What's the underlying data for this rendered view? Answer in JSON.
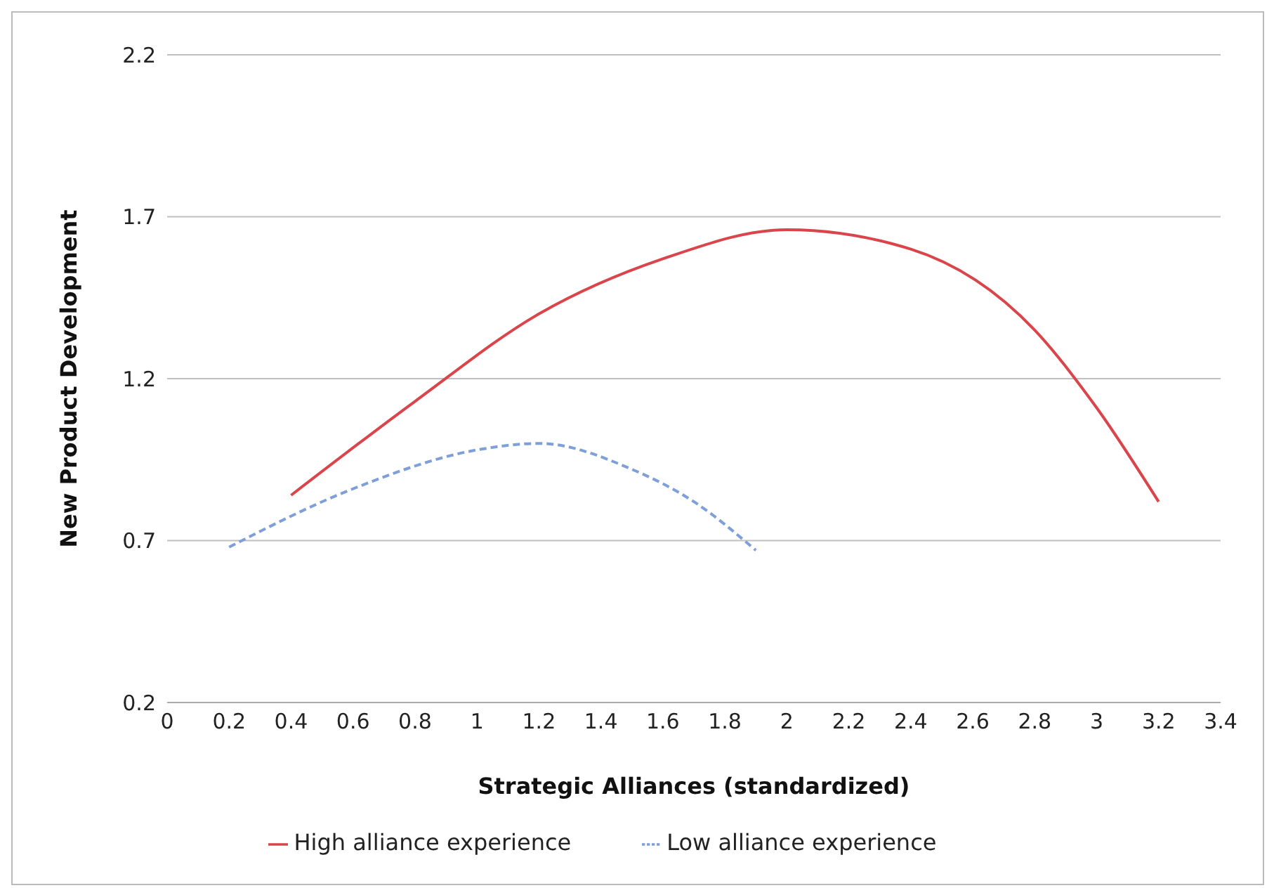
{
  "chart_data": {
    "type": "line",
    "xlabel": "Strategic Alliances (standardized)",
    "ylabel": "New Product Development",
    "xlim": [
      0,
      3.4
    ],
    "xticks": [
      0,
      0.2,
      0.4,
      0.6,
      0.8,
      1,
      1.2,
      1.4,
      1.6,
      1.8,
      2,
      2.2,
      2.4,
      2.6,
      2.8,
      3,
      3.2,
      3.4
    ],
    "ylim": [
      0.2,
      2.2
    ],
    "yticks": [
      0.2,
      0.7,
      1.2,
      1.7,
      2.2
    ],
    "grid": "y",
    "legend": "bottom",
    "marker": "none",
    "series": [
      {
        "name": "Low alliance experience",
        "color": "#7f9fd8",
        "line_style": "dashed",
        "x": [
          0.2,
          0.6,
          1.0,
          1.2,
          1.5,
          1.7,
          1.9
        ],
        "values": [
          0.68,
          0.86,
          0.98,
          1.0,
          0.92,
          0.82,
          0.67
        ]
      },
      {
        "name": "High alliance experience",
        "color": "#d9454a",
        "line_style": "solid",
        "x": [
          0.4,
          0.8,
          1.2,
          1.6,
          2.0,
          2.4,
          2.8,
          3.0,
          3.2
        ],
        "values": [
          0.84,
          1.13,
          1.4,
          1.57,
          1.66,
          1.6,
          1.35,
          1.11,
          0.82
        ]
      }
    ]
  }
}
